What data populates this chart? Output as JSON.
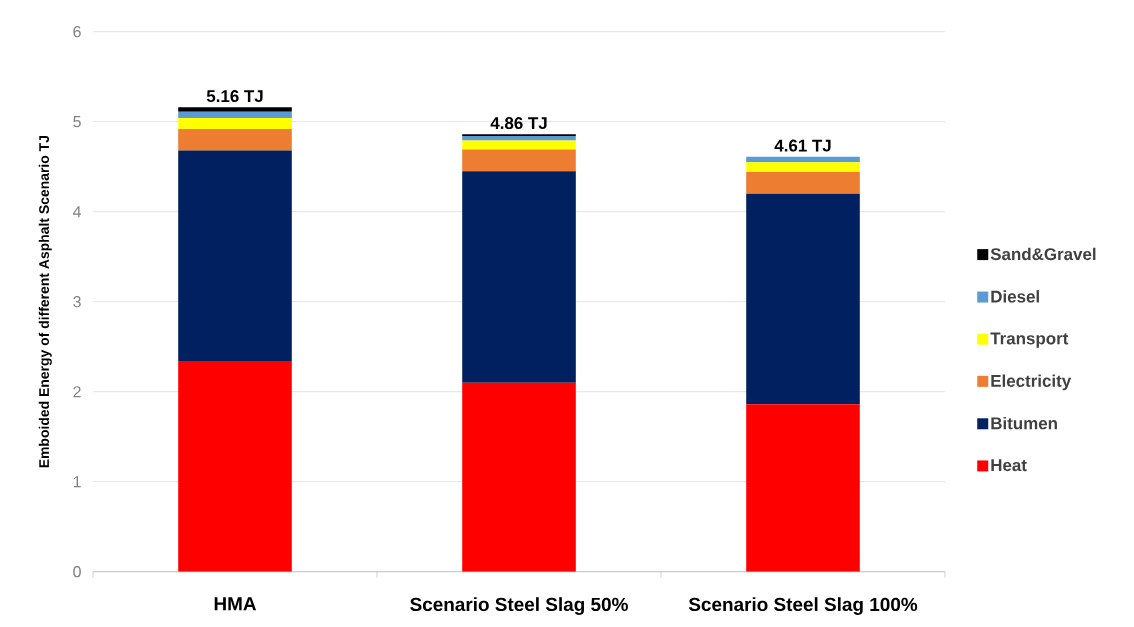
{
  "chart_data": {
    "type": "bar",
    "stacked": true,
    "ylabel": "Emboided Energy of different Asphalt Scenario TJ",
    "categories": [
      "HMA",
      "Scenario Steel Slag 50%",
      "Scenario Steel Slag 100%"
    ],
    "series": [
      {
        "name": "Heat",
        "color": "#ff0000",
        "values": [
          2.34,
          2.1,
          1.86
        ]
      },
      {
        "name": "Bitumen",
        "color": "#002060",
        "values": [
          2.34,
          2.35,
          2.34
        ]
      },
      {
        "name": "Electricity",
        "color": "#ed7d31",
        "values": [
          0.24,
          0.24,
          0.24
        ]
      },
      {
        "name": "Transport",
        "color": "#ffff00",
        "values": [
          0.12,
          0.1,
          0.11
        ]
      },
      {
        "name": "Diesel",
        "color": "#5b9bd5",
        "values": [
          0.07,
          0.05,
          0.06
        ]
      },
      {
        "name": "Sand&Gravel",
        "color": "#000000",
        "values": [
          0.05,
          0.02,
          0
        ]
      }
    ],
    "totals": [
      "5.16 TJ",
      "4.86 TJ",
      "4.61 TJ"
    ],
    "ylim": [
      0,
      6
    ],
    "yticks": [
      0,
      1,
      2,
      3,
      4,
      5,
      6
    ],
    "grid": "y",
    "legend": "right"
  }
}
